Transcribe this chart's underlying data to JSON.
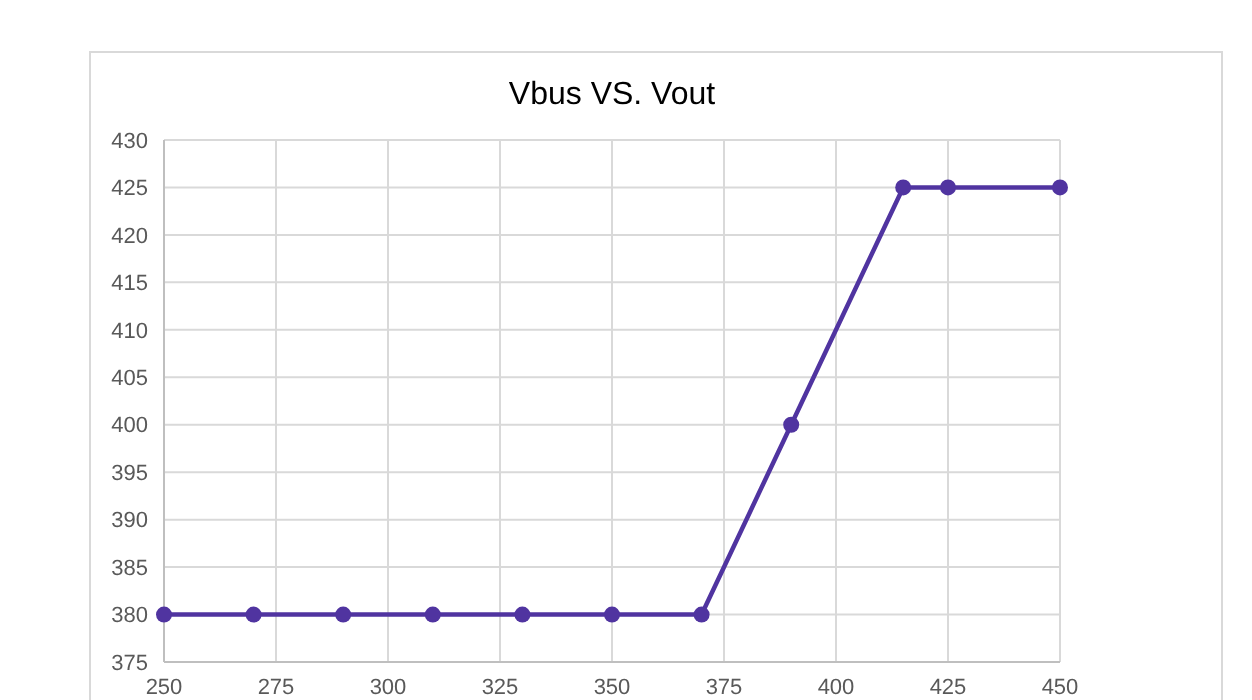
{
  "chart_data": {
    "type": "line",
    "title": "Vbus VS. Vout",
    "x": [
      250,
      270,
      290,
      310,
      330,
      350,
      370,
      390,
      415,
      425,
      450
    ],
    "series": [
      {
        "color": "#5034a0",
        "values": [
          380,
          380,
          380,
          380,
          380,
          380,
          380,
          400,
          425,
          425,
          425
        ]
      }
    ],
    "xlim": [
      250,
      450
    ],
    "xticks": [
      250,
      275,
      300,
      325,
      350,
      375,
      400,
      425,
      450
    ],
    "ylim": [
      375,
      430
    ],
    "yticks": [
      375,
      380,
      385,
      390,
      395,
      400,
      405,
      410,
      415,
      420,
      425,
      430
    ],
    "grid": true,
    "marker": "circle",
    "line_style": "solid"
  }
}
